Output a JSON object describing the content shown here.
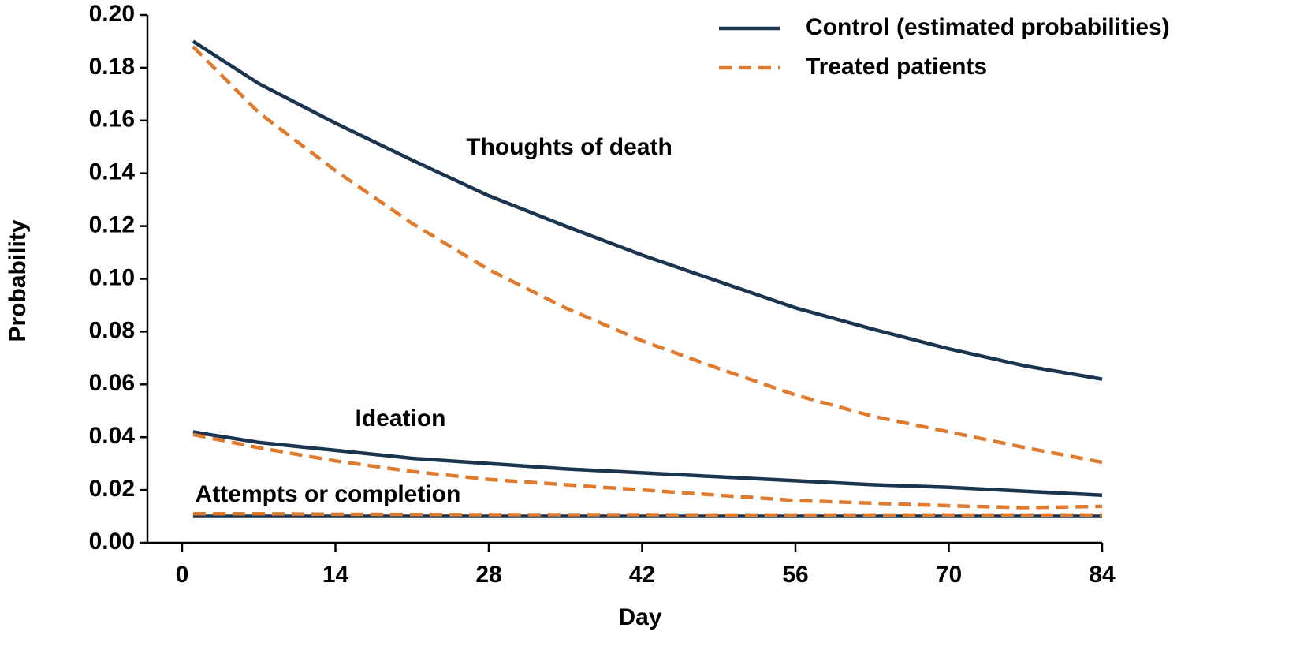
{
  "chart_data": {
    "type": "line",
    "xlabel": "Day",
    "ylabel": "Probability",
    "x": [
      1,
      7,
      14,
      21,
      28,
      35,
      42,
      49,
      56,
      63,
      70,
      77,
      84
    ],
    "xlim": [
      0,
      84
    ],
    "xticks": [
      0,
      14,
      28,
      42,
      56,
      70,
      84
    ],
    "ylim": [
      0,
      0.2
    ],
    "yticks": [
      {
        "value": 0,
        "label": "0.00"
      },
      {
        "value": 0.02,
        "label": "0.02"
      },
      {
        "value": 0.04,
        "label": "0.04"
      },
      {
        "value": 0.06,
        "label": "0.06"
      },
      {
        "value": 0.08,
        "label": "0.08"
      },
      {
        "value": 0.1,
        "label": "0.10"
      },
      {
        "value": 0.12,
        "label": "0.12"
      },
      {
        "value": 0.14,
        "label": "0.14"
      },
      {
        "value": 0.16,
        "label": "0.16"
      },
      {
        "value": 0.18,
        "label": "0.18"
      },
      {
        "value": 0.2,
        "label": "0.20"
      }
    ],
    "series": [
      {
        "name": "Control (estimated probabilities)",
        "color": "#1b3550",
        "dashed": false
      },
      {
        "name": "Treated patients",
        "color": "#e07b2e",
        "dashed": true
      }
    ],
    "outcomes": [
      {
        "label": "Thoughts of death",
        "control": [
          0.19,
          0.174,
          0.159,
          0.145,
          0.1315,
          0.12,
          0.109,
          0.099,
          0.089,
          0.081,
          0.0735,
          0.067,
          0.062
        ],
        "treated": [
          0.188,
          0.163,
          0.141,
          0.121,
          0.1035,
          0.089,
          0.0765,
          0.066,
          0.056,
          0.048,
          0.042,
          0.036,
          0.0305
        ]
      },
      {
        "label": "Ideation",
        "control": [
          0.042,
          0.038,
          0.035,
          0.032,
          0.03,
          0.028,
          0.0265,
          0.025,
          0.0235,
          0.022,
          0.021,
          0.0195,
          0.018
        ],
        "treated": [
          0.041,
          0.036,
          0.031,
          0.027,
          0.024,
          0.022,
          0.02,
          0.018,
          0.016,
          0.015,
          0.014,
          0.0133,
          0.0138
        ]
      },
      {
        "label": "Attempts or completion",
        "control": [
          0.01,
          0.01,
          0.01,
          0.01,
          0.01,
          0.01,
          0.01,
          0.01,
          0.01,
          0.01,
          0.01,
          0.01,
          0.01
        ],
        "treated": [
          0.011,
          0.011,
          0.0108,
          0.0107,
          0.0106,
          0.0106,
          0.0106,
          0.0105,
          0.0105,
          0.0105,
          0.0105,
          0.0105,
          0.0105
        ]
      }
    ]
  }
}
